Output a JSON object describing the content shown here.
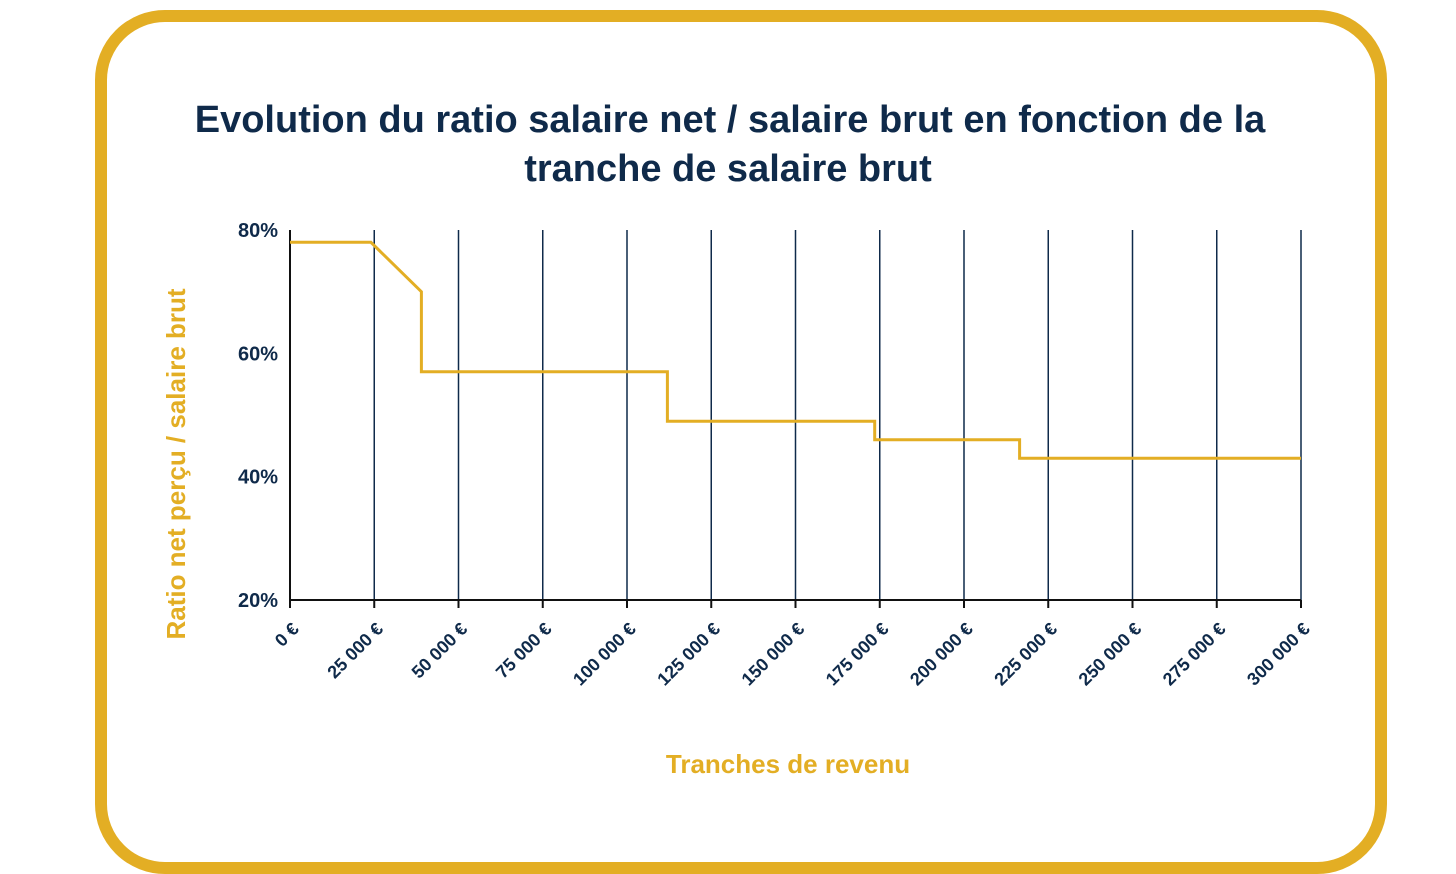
{
  "chart_data": {
    "type": "line",
    "title_lines": [
      "Evolution du ratio salaire net / salaire brut en fonction de la",
      "tranche de salaire brut"
    ],
    "xlabel": "Tranches de revenu",
    "ylabel": "Ratio net perçu / salaire brut",
    "x_ticks": [
      0,
      25000,
      50000,
      75000,
      100000,
      125000,
      150000,
      175000,
      200000,
      225000,
      250000,
      275000,
      300000
    ],
    "x_tick_labels": [
      "0 €",
      "25 000 €",
      "50 000 €",
      "75 000 €",
      "100 000 €",
      "125 000 €",
      "150 000 €",
      "175 000 €",
      "200 000 €",
      "225 000 €",
      "250 000 €",
      "275 000 €",
      "300 000 €"
    ],
    "y_ticks": [
      20,
      40,
      60,
      80
    ],
    "y_tick_labels": [
      "20%",
      "40%",
      "60%",
      "80%"
    ],
    "xlim": [
      0,
      300000
    ],
    "ylim": [
      20,
      80
    ],
    "grid": "vertical",
    "series": [
      {
        "color": "#E3AE24",
        "points": [
          {
            "x": 0,
            "y": 78
          },
          {
            "x": 24000,
            "y": 78
          },
          {
            "x": 39000,
            "y": 70
          },
          {
            "x": 39000,
            "y": 57
          },
          {
            "x": 112000,
            "y": 57
          },
          {
            "x": 112000,
            "y": 49
          },
          {
            "x": 173500,
            "y": 49
          },
          {
            "x": 173500,
            "y": 46
          },
          {
            "x": 216500,
            "y": 46
          },
          {
            "x": 216500,
            "y": 43
          },
          {
            "x": 300000,
            "y": 43
          }
        ]
      }
    ]
  },
  "colors": {
    "accent": "#E3AE24",
    "text": "#0F2A4A",
    "grid": "#0F2A4A",
    "axis": "#111111"
  }
}
